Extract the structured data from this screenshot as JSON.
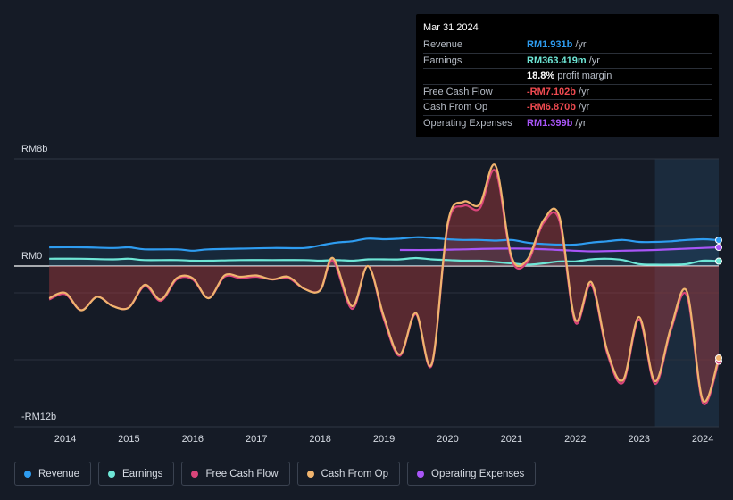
{
  "tooltip": {
    "date": "Mar 31 2024",
    "rows": [
      {
        "label": "Revenue",
        "value": "RM1.931b",
        "unit": "/yr",
        "color": "#2e9cf0"
      },
      {
        "label": "Earnings",
        "value": "RM363.419m",
        "unit": "/yr",
        "color": "#6ee6d6"
      },
      {
        "label": "",
        "value": "18.8%",
        "unit": "profit margin",
        "color": "#ffffff"
      },
      {
        "label": "Free Cash Flow",
        "value": "-RM7.102b",
        "unit": "/yr",
        "color": "#ef4a50"
      },
      {
        "label": "Cash From Op",
        "value": "-RM6.870b",
        "unit": "/yr",
        "color": "#ef4a50"
      },
      {
        "label": "Operating Expenses",
        "value": "RM1.399b",
        "unit": "/yr",
        "color": "#a855f7"
      }
    ]
  },
  "legend": [
    {
      "label": "Revenue",
      "color": "#2e9cf0"
    },
    {
      "label": "Earnings",
      "color": "#6ee6d6"
    },
    {
      "label": "Free Cash Flow",
      "color": "#d9457a"
    },
    {
      "label": "Cash From Op",
      "color": "#f0b46e"
    },
    {
      "label": "Operating Expenses",
      "color": "#a855f7"
    }
  ],
  "chart_data": {
    "type": "line",
    "title": "",
    "xlabel": "",
    "ylabel": "",
    "y_unit": "RM b",
    "ylim": [
      -12,
      8
    ],
    "y_tick_labels": [
      "RM8b",
      "RM0",
      "-RM12b"
    ],
    "x_tick_labels": [
      "2014",
      "2015",
      "2016",
      "2017",
      "2018",
      "2019",
      "2020",
      "2021",
      "2022",
      "2023",
      "2024"
    ],
    "x_tick_values": [
      2014,
      2015,
      2016,
      2017,
      2018,
      2019,
      2020,
      2021,
      2022,
      2023,
      2024
    ],
    "x_range": [
      2013.65,
      2024.25
    ],
    "forecast_start": 2023.25,
    "series": [
      {
        "name": "Revenue",
        "color": "#2e9cf0",
        "points": [
          [
            2013.75,
            1.4
          ],
          [
            2014.25,
            1.4
          ],
          [
            2014.75,
            1.35
          ],
          [
            2015.0,
            1.4
          ],
          [
            2015.25,
            1.25
          ],
          [
            2015.75,
            1.25
          ],
          [
            2016.0,
            1.15
          ],
          [
            2016.25,
            1.25
          ],
          [
            2016.75,
            1.3
          ],
          [
            2017.25,
            1.35
          ],
          [
            2017.75,
            1.35
          ],
          [
            2018.0,
            1.55
          ],
          [
            2018.25,
            1.75
          ],
          [
            2018.5,
            1.85
          ],
          [
            2018.75,
            2.05
          ],
          [
            2019.0,
            2.0
          ],
          [
            2019.25,
            2.05
          ],
          [
            2019.5,
            2.15
          ],
          [
            2019.75,
            2.1
          ],
          [
            2020.0,
            2.0
          ],
          [
            2020.25,
            1.95
          ],
          [
            2020.5,
            1.95
          ],
          [
            2020.75,
            1.9
          ],
          [
            2021.0,
            1.95
          ],
          [
            2021.25,
            1.75
          ],
          [
            2021.5,
            1.65
          ],
          [
            2021.75,
            1.6
          ],
          [
            2022.0,
            1.6
          ],
          [
            2022.25,
            1.75
          ],
          [
            2022.5,
            1.85
          ],
          [
            2022.75,
            1.95
          ],
          [
            2023.0,
            1.8
          ],
          [
            2023.25,
            1.8
          ],
          [
            2023.5,
            1.85
          ],
          [
            2023.75,
            1.95
          ],
          [
            2024.0,
            2.0
          ],
          [
            2024.25,
            1.931
          ]
        ]
      },
      {
        "name": "Earnings",
        "color": "#6ee6d6",
        "points": [
          [
            2013.75,
            0.55
          ],
          [
            2014.25,
            0.55
          ],
          [
            2014.75,
            0.5
          ],
          [
            2015.0,
            0.55
          ],
          [
            2015.25,
            0.45
          ],
          [
            2015.75,
            0.45
          ],
          [
            2016.0,
            0.4
          ],
          [
            2016.25,
            0.4
          ],
          [
            2016.75,
            0.45
          ],
          [
            2017.25,
            0.45
          ],
          [
            2017.75,
            0.45
          ],
          [
            2018.0,
            0.4
          ],
          [
            2018.25,
            0.45
          ],
          [
            2018.5,
            0.4
          ],
          [
            2018.75,
            0.5
          ],
          [
            2019.0,
            0.5
          ],
          [
            2019.25,
            0.5
          ],
          [
            2019.5,
            0.6
          ],
          [
            2019.75,
            0.5
          ],
          [
            2020.0,
            0.45
          ],
          [
            2020.25,
            0.4
          ],
          [
            2020.5,
            0.4
          ],
          [
            2020.75,
            0.3
          ],
          [
            2021.0,
            0.2
          ],
          [
            2021.25,
            0.1
          ],
          [
            2021.5,
            0.2
          ],
          [
            2021.75,
            0.35
          ],
          [
            2022.0,
            0.35
          ],
          [
            2022.25,
            0.5
          ],
          [
            2022.5,
            0.55
          ],
          [
            2022.75,
            0.45
          ],
          [
            2023.0,
            0.15
          ],
          [
            2023.25,
            0.1
          ],
          [
            2023.5,
            0.1
          ],
          [
            2023.75,
            0.15
          ],
          [
            2024.0,
            0.4
          ],
          [
            2024.25,
            0.363
          ]
        ]
      },
      {
        "name": "Operating Expenses",
        "color": "#a855f7",
        "points": [
          [
            2019.25,
            1.2
          ],
          [
            2019.75,
            1.2
          ],
          [
            2020.25,
            1.25
          ],
          [
            2020.75,
            1.3
          ],
          [
            2021.25,
            1.3
          ],
          [
            2021.75,
            1.2
          ],
          [
            2022.25,
            1.1
          ],
          [
            2022.75,
            1.15
          ],
          [
            2023.25,
            1.2
          ],
          [
            2023.75,
            1.3
          ],
          [
            2024.25,
            1.399
          ]
        ]
      },
      {
        "name": "Free Cash Flow",
        "color": "#d9457a",
        "points": [
          [
            2013.75,
            -2.5
          ],
          [
            2014.0,
            -2.1
          ],
          [
            2014.25,
            -3.3
          ],
          [
            2014.5,
            -2.3
          ],
          [
            2014.75,
            -3.0
          ],
          [
            2015.0,
            -3.1
          ],
          [
            2015.25,
            -1.5
          ],
          [
            2015.5,
            -2.6
          ],
          [
            2015.75,
            -1.0
          ],
          [
            2016.0,
            -1.0
          ],
          [
            2016.25,
            -2.4
          ],
          [
            2016.5,
            -0.8
          ],
          [
            2016.75,
            -0.9
          ],
          [
            2017.0,
            -0.8
          ],
          [
            2017.25,
            -1.0
          ],
          [
            2017.5,
            -0.9
          ],
          [
            2017.75,
            -1.7
          ],
          [
            2018.0,
            -1.8
          ],
          [
            2018.2,
            0.4
          ],
          [
            2018.5,
            -3.2
          ],
          [
            2018.75,
            0.0
          ],
          [
            2019.0,
            -4.0
          ],
          [
            2019.25,
            -6.7
          ],
          [
            2019.5,
            -3.6
          ],
          [
            2019.75,
            -7.4
          ],
          [
            2020.0,
            3.0
          ],
          [
            2020.25,
            4.5
          ],
          [
            2020.5,
            4.3
          ],
          [
            2020.75,
            7.1
          ],
          [
            2021.0,
            0.5
          ],
          [
            2021.25,
            0.3
          ],
          [
            2021.5,
            3.2
          ],
          [
            2021.75,
            3.4
          ],
          [
            2022.0,
            -4.2
          ],
          [
            2022.25,
            -1.4
          ],
          [
            2022.5,
            -6.5
          ],
          [
            2022.75,
            -8.7
          ],
          [
            2023.0,
            -4.0
          ],
          [
            2023.25,
            -8.8
          ],
          [
            2023.5,
            -4.8
          ],
          [
            2023.75,
            -2.2
          ],
          [
            2024.0,
            -10.2
          ],
          [
            2024.25,
            -7.102
          ]
        ]
      },
      {
        "name": "Cash From Op",
        "color": "#f0b46e",
        "points": [
          [
            2013.75,
            -2.4
          ],
          [
            2014.0,
            -2.0
          ],
          [
            2014.25,
            -3.3
          ],
          [
            2014.5,
            -2.3
          ],
          [
            2014.75,
            -3.0
          ],
          [
            2015.0,
            -3.1
          ],
          [
            2015.25,
            -1.4
          ],
          [
            2015.5,
            -2.5
          ],
          [
            2015.75,
            -0.9
          ],
          [
            2016.0,
            -0.9
          ],
          [
            2016.25,
            -2.4
          ],
          [
            2016.5,
            -0.7
          ],
          [
            2016.75,
            -0.8
          ],
          [
            2017.0,
            -0.7
          ],
          [
            2017.25,
            -1.0
          ],
          [
            2017.5,
            -0.8
          ],
          [
            2017.75,
            -1.7
          ],
          [
            2018.0,
            -1.8
          ],
          [
            2018.2,
            0.6
          ],
          [
            2018.5,
            -3.0
          ],
          [
            2018.75,
            0.0
          ],
          [
            2019.0,
            -3.8
          ],
          [
            2019.25,
            -6.6
          ],
          [
            2019.5,
            -3.5
          ],
          [
            2019.75,
            -7.3
          ],
          [
            2020.0,
            3.2
          ],
          [
            2020.25,
            4.8
          ],
          [
            2020.5,
            4.6
          ],
          [
            2020.75,
            7.5
          ],
          [
            2021.0,
            0.7
          ],
          [
            2021.25,
            0.5
          ],
          [
            2021.5,
            3.4
          ],
          [
            2021.75,
            3.7
          ],
          [
            2022.0,
            -4.0
          ],
          [
            2022.25,
            -1.2
          ],
          [
            2022.5,
            -6.3
          ],
          [
            2022.75,
            -8.5
          ],
          [
            2023.0,
            -3.8
          ],
          [
            2023.25,
            -8.6
          ],
          [
            2023.5,
            -4.6
          ],
          [
            2023.75,
            -1.9
          ],
          [
            2024.0,
            -10.0
          ],
          [
            2024.25,
            -6.87
          ]
        ]
      }
    ]
  }
}
